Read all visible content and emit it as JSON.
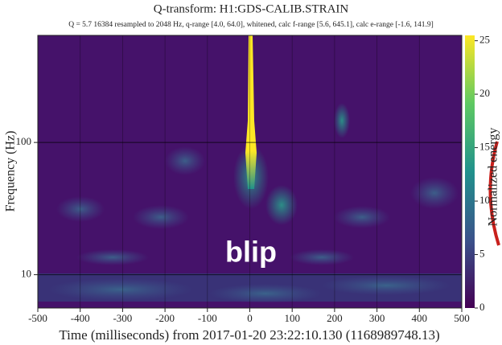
{
  "chart_data": {
    "type": "heatmap",
    "title": "Q-transform: H1:GDS-CALIB.STRAIN",
    "subtitle": "Q = 5.7 16384 resampled to 2048 Hz, q-range [4.0, 64.0], whitened, calc f-range [5.6, 645.1], calc e-range [-1.6, 141.9]",
    "xlabel": "Time (milliseconds) from 2017-01-20 23:22:10.130 (1168989748.13)",
    "ylabel": "Frequency (Hz)",
    "annotation": "blip",
    "xlim": [
      -500,
      500
    ],
    "xticks": [
      -500,
      -400,
      -300,
      -200,
      -100,
      0,
      100,
      200,
      300,
      400,
      500
    ],
    "ylim": [
      5.6,
      645
    ],
    "yticks": [
      10,
      100
    ],
    "log_y": true,
    "grid": true,
    "colorbar": {
      "label": "Normalized energy",
      "lim": [
        0,
        25.5
      ],
      "ticks": [
        0,
        5,
        10,
        15,
        20,
        25
      ]
    }
  }
}
